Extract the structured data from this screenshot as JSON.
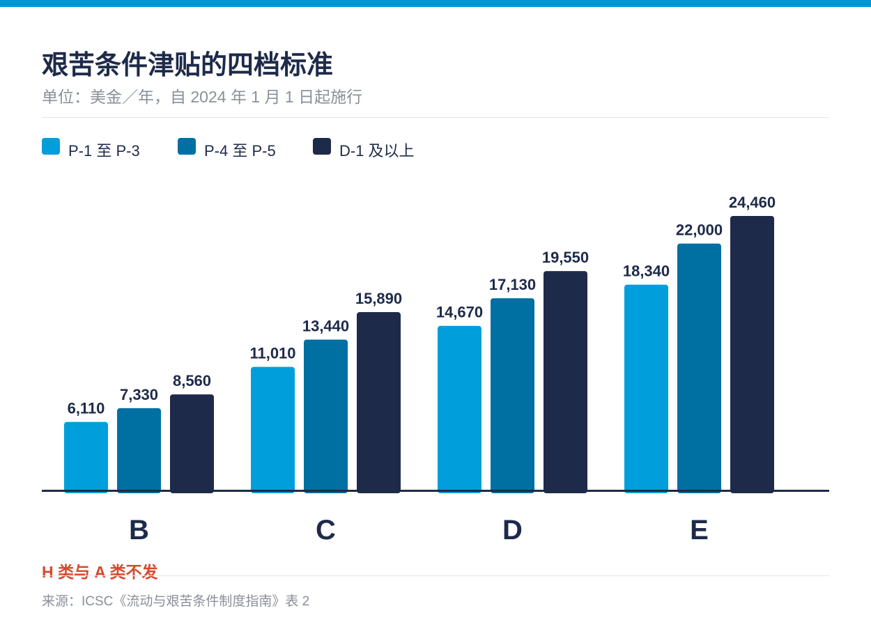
{
  "title": "艰苦条件津贴的四档标准",
  "subtitle": "单位：美金／年，自 2024 年 1 月 1 日起施行",
  "note": "H 类与 A 类不发",
  "source": "来源：ICSC《流动与艰苦条件制度指南》表 2",
  "colors": {
    "top_bar": "#0096d6",
    "axis": "#1e2a4a",
    "label_text": "#1e2a4a",
    "note": "#d6492f",
    "muted": "#8a8f99"
  },
  "chart_data": {
    "type": "bar",
    "categories": [
      "B",
      "C",
      "D",
      "E"
    ],
    "series": [
      {
        "name": "P-1 至 P-3",
        "color": "#009fdb",
        "values": [
          6110,
          11010,
          14670,
          18340
        ],
        "labels": [
          "6,110",
          "11,010",
          "14,670",
          "18,340"
        ]
      },
      {
        "name": "P-4 至 P-5",
        "color": "#006fa2",
        "values": [
          7330,
          13440,
          17130,
          22000
        ],
        "labels": [
          "7,330",
          "13,440",
          "17,130",
          "22,000"
        ]
      },
      {
        "name": "D-1 及以上",
        "color": "#1e2a4a",
        "values": [
          8560,
          15890,
          19550,
          24460
        ],
        "labels": [
          "8,560",
          "15,890",
          "19,550",
          "24,460"
        ]
      }
    ],
    "ylim": [
      0,
      24460
    ],
    "grid": false,
    "legend_position": "top-left"
  }
}
